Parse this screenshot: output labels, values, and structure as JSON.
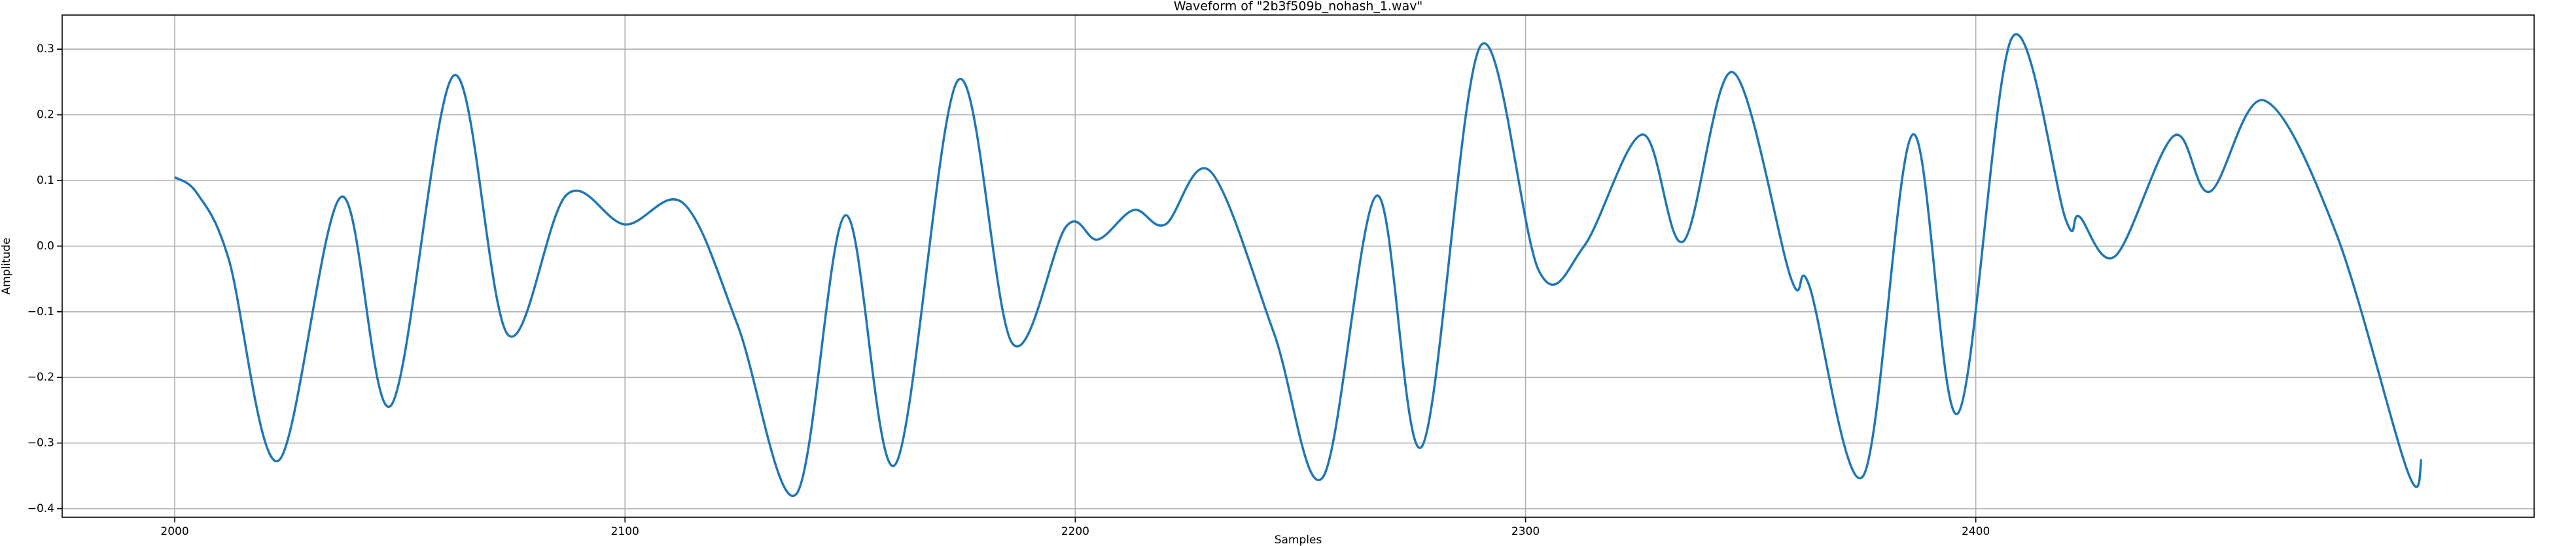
{
  "chart_data": {
    "type": "line",
    "title": "Waveform of \"2b3f509b_nohash_1.wav\"",
    "x_label": "Samples",
    "y_label": "Amplitude",
    "xlim": [
      1975,
      2524
    ],
    "ylim": [
      -0.413,
      0.352
    ],
    "xticks": [
      2000,
      2100,
      2200,
      2300,
      2400
    ],
    "yticks": [
      {
        "value": -0.4,
        "label": "−0.4"
      },
      {
        "value": -0.3,
        "label": "−0.3"
      },
      {
        "value": -0.2,
        "label": "−0.2"
      },
      {
        "value": -0.1,
        "label": "−0.1"
      },
      {
        "value": 0.0,
        "label": "0.0"
      },
      {
        "value": 0.1,
        "label": "0.1"
      },
      {
        "value": 0.2,
        "label": "0.2"
      },
      {
        "value": 0.3,
        "label": "0.3"
      }
    ],
    "grid": true,
    "x": [
      2000,
      2005,
      2012,
      2023,
      2037,
      2048,
      2062,
      2074,
      2087,
      2100,
      2113,
      2125,
      2138,
      2149,
      2160,
      2174,
      2186,
      2198,
      2205,
      2213,
      2220,
      2230,
      2244,
      2255,
      2267,
      2277,
      2290,
      2303,
      2313,
      2326,
      2335,
      2346,
      2359,
      2363,
      2375,
      2386,
      2396,
      2408,
      2420,
      2423,
      2431,
      2444,
      2452,
      2464,
      2480,
      2496,
      2499
    ],
    "series": [
      {
        "name": "waveform",
        "color": "#1f77b4",
        "values": [
          0.105,
          0.08,
          -0.02,
          -0.327,
          0.075,
          -0.243,
          0.26,
          -0.135,
          0.078,
          0.033,
          0.065,
          -0.12,
          -0.378,
          0.047,
          -0.333,
          0.253,
          -0.148,
          0.03,
          0.01,
          0.055,
          0.033,
          0.114,
          -0.13,
          -0.352,
          0.077,
          -0.305,
          0.305,
          -0.038,
          0.0,
          0.17,
          0.007,
          0.265,
          -0.05,
          -0.06,
          -0.35,
          0.17,
          -0.255,
          0.317,
          0.04,
          0.045,
          -0.015,
          0.168,
          0.083,
          0.222,
          0.02,
          -0.345,
          -0.325
        ]
      }
    ]
  }
}
